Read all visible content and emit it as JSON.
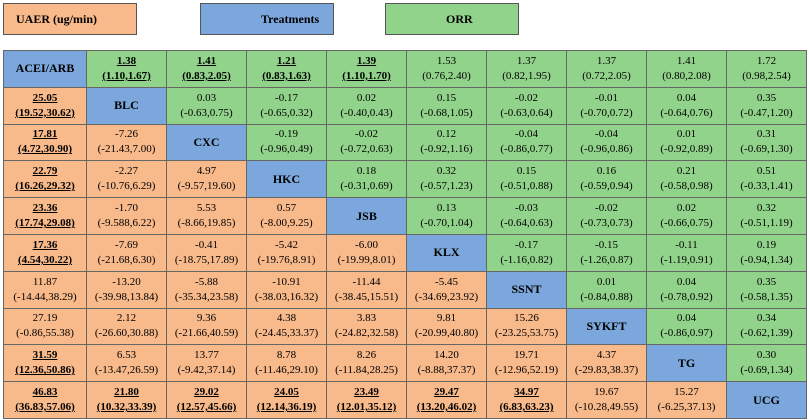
{
  "legend": [
    {
      "label": "UAER (ug/min)",
      "color": "#f8b98b"
    },
    {
      "label": "Treatments",
      "color": "#7ca7dc"
    },
    {
      "label": "ORR",
      "color": "#92d38b"
    }
  ],
  "table": {
    "rows": [
      [
        {
          "name": "ACEI/ARB"
        },
        {
          "est": "1.38",
          "ci": "(1.10,1.67)",
          "bold": true
        },
        {
          "est": "1.41",
          "ci": "(0.83,2.05)",
          "bold": true
        },
        {
          "est": "1.21",
          "ci": "(0.83,1.63)",
          "bold": true
        },
        {
          "est": "1.39",
          "ci": "(1.10,1.70)",
          "bold": true
        },
        {
          "est": "1.53",
          "ci": "(0.76,2.40)"
        },
        {
          "est": "1.37",
          "ci": "(0.82,1.95)"
        },
        {
          "est": "1.37",
          "ci": "(0.72,2.05)"
        },
        {
          "est": "1.41",
          "ci": "(0.80,2.08)"
        },
        {
          "est": "1.72",
          "ci": "(0.98,2.54)"
        }
      ],
      [
        {
          "est": "25.05",
          "ci": "(19.52,30.62)",
          "bold": true
        },
        {
          "name": "BLC"
        },
        {
          "est": "0.03",
          "ci": "(-0.63,0.75)"
        },
        {
          "est": "-0.17",
          "ci": "(-0.65,0.32)"
        },
        {
          "est": "0.02",
          "ci": "(-0.40,0.43)"
        },
        {
          "est": "0.15",
          "ci": "(-0.68,1.05)"
        },
        {
          "est": "-0.02",
          "ci": "(-0.63,0.64)"
        },
        {
          "est": "-0.01",
          "ci": "(-0.70,0.72)"
        },
        {
          "est": "0.04",
          "ci": "(-0.64,0.76)"
        },
        {
          "est": "0.35",
          "ci": "(-0.47,1.20)"
        }
      ],
      [
        {
          "est": "17.81",
          "ci": "(4.72,30.90)",
          "bold": true
        },
        {
          "est": "-7.26",
          "ci": "(-21.43,7.00)"
        },
        {
          "name": "CXC"
        },
        {
          "est": "-0.19",
          "ci": "(-0.96,0.49)"
        },
        {
          "est": "-0.02",
          "ci": "(-0.72,0.63)"
        },
        {
          "est": "0.12",
          "ci": "(-0.92,1.16)"
        },
        {
          "est": "-0.04",
          "ci": "(-0.86,0.77)"
        },
        {
          "est": "-0.04",
          "ci": "(-0.96,0.86)"
        },
        {
          "est": "0.01",
          "ci": "(-0.92,0.89)"
        },
        {
          "est": "0.31",
          "ci": "(-0.69,1.30)"
        }
      ],
      [
        {
          "est": "22.79",
          "ci": "(16.26,29.32)",
          "bold": true
        },
        {
          "est": "-2.27",
          "ci": "(-10.76,6.29)"
        },
        {
          "est": "4.97",
          "ci": "(-9.57,19.60)"
        },
        {
          "name": "HKC"
        },
        {
          "est": "0.18",
          "ci": "(-0.31,0.69)"
        },
        {
          "est": "0.32",
          "ci": "(-0.57,1.23)"
        },
        {
          "est": "0.15",
          "ci": "(-0.51,0.88)"
        },
        {
          "est": "0.16",
          "ci": "(-0.59,0.94)"
        },
        {
          "est": "0.21",
          "ci": "(-0.58,0.98)"
        },
        {
          "est": "0.51",
          "ci": "(-0.33,1.41)"
        }
      ],
      [
        {
          "est": "23.36",
          "ci": "(17.74,29.08)",
          "bold": true
        },
        {
          "est": "-1.70",
          "ci": "(-9.588,6.22)"
        },
        {
          "est": "5.53",
          "ci": "(-8.66,19.85)"
        },
        {
          "est": "0.57",
          "ci": "(-8.00,9.25)"
        },
        {
          "name": "JSB"
        },
        {
          "est": "0.13",
          "ci": "(-0.70,1.04)"
        },
        {
          "est": "-0.03",
          "ci": "(-0.64,0.63)"
        },
        {
          "est": "-0.02",
          "ci": "(-0.73,0.73)"
        },
        {
          "est": "0.02",
          "ci": "(-0.66,0.75)"
        },
        {
          "est": "0.32",
          "ci": "(-0.51,1.19)"
        }
      ],
      [
        {
          "est": "17.36",
          "ci": "(4.54,30.22)",
          "bold": true
        },
        {
          "est": "-7.69",
          "ci": "(-21.68,6.30)"
        },
        {
          "est": "-0.41",
          "ci": "(-18.75,17.89)"
        },
        {
          "est": "-5.42",
          "ci": "(-19.76,8.91)"
        },
        {
          "est": "-6.00",
          "ci": "(-19.99,8.01)"
        },
        {
          "name": "KLX"
        },
        {
          "est": "-0.17",
          "ci": "(-1.16,0.82)"
        },
        {
          "est": "-0.15",
          "ci": "(-1.26,0.87)"
        },
        {
          "est": "-0.11",
          "ci": "(-1.19,0.91)"
        },
        {
          "est": "0.19",
          "ci": "(-0.94,1.34)"
        }
      ],
      [
        {
          "est": "11.87",
          "ci": "(-14.44,38.29)"
        },
        {
          "est": "-13.20",
          "ci": "(-39.98,13.84)"
        },
        {
          "est": "-5.88",
          "ci": "(-35.34,23.58)"
        },
        {
          "est": "-10.91",
          "ci": "(-38.03,16.32)"
        },
        {
          "est": "-11.44",
          "ci": "(-38.45,15.51)"
        },
        {
          "est": "-5.45",
          "ci": "(-34.69,23.92)"
        },
        {
          "name": "SSNT"
        },
        {
          "est": "0.01",
          "ci": "(-0.84,0.88)"
        },
        {
          "est": "0.04",
          "ci": "(-0.78,0.92)"
        },
        {
          "est": "0.35",
          "ci": "(-0.58,1.35)"
        }
      ],
      [
        {
          "est": "27.19",
          "ci": "(-0.86,55.38)"
        },
        {
          "est": "2.12",
          "ci": "(-26.60,30.88)"
        },
        {
          "est": "9.36",
          "ci": "(-21.66,40.59)"
        },
        {
          "est": "4.38",
          "ci": "(-24.45,33.37)"
        },
        {
          "est": "3.83",
          "ci": "(-24.82,32.58)"
        },
        {
          "est": "9.81",
          "ci": "(-20.99,40.80)"
        },
        {
          "est": "15.26",
          "ci": "(-23.25,53.75)"
        },
        {
          "name": "SYKFT"
        },
        {
          "est": "0.04",
          "ci": "(-0.86,0.97)"
        },
        {
          "est": "0.34",
          "ci": "(-0.62,1.39)"
        }
      ],
      [
        {
          "est": "31.59",
          "ci": "(12.36,50.86)",
          "bold": true
        },
        {
          "est": "6.53",
          "ci": "(-13.47,26.59)"
        },
        {
          "est": "13.77",
          "ci": "(-9.42,37.14)"
        },
        {
          "est": "8.78",
          "ci": "(-11.46,29.10)"
        },
        {
          "est": "8.26",
          "ci": "(-11.84,28.25)"
        },
        {
          "est": "14.20",
          "ci": "(-8.88,37.37)"
        },
        {
          "est": "19.71",
          "ci": "(-12.96,52.19)"
        },
        {
          "est": "4.37",
          "ci": "(-29.83,38.37)"
        },
        {
          "name": "TG"
        },
        {
          "est": "0.30",
          "ci": "(-0.69,1.34)"
        }
      ],
      [
        {
          "est": "46.83",
          "ci": "(36.83,57.06)",
          "bold": true
        },
        {
          "est": "21.80",
          "ci": "(10.32,33.39)",
          "bold": true
        },
        {
          "est": "29.02",
          "ci": "(12.57,45.66)",
          "bold": true
        },
        {
          "est": "24.05",
          "ci": "(12.14,36.19)",
          "bold": true
        },
        {
          "est": "23.49",
          "ci": "(12.01,35.12)",
          "bold": true
        },
        {
          "est": "29.47",
          "ci": "(13.20,46.02)",
          "bold": true
        },
        {
          "est": "34.97",
          "ci": "(6.83,63.23)",
          "bold": true
        },
        {
          "est": "19.67",
          "ci": "(-10.28,49.55)"
        },
        {
          "est": "15.27",
          "ci": "(-6.25,37.13)"
        },
        {
          "name": "UCG"
        }
      ]
    ]
  }
}
